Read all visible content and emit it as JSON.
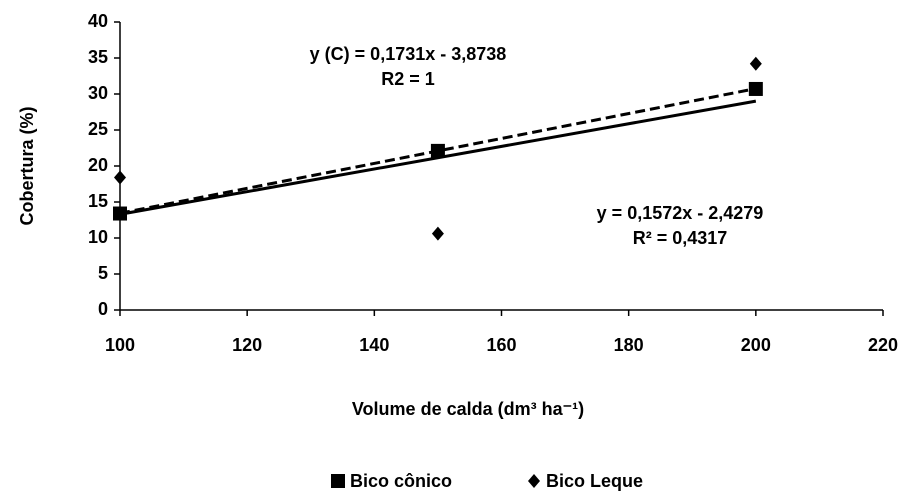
{
  "chart_data": {
    "type": "scatter",
    "x_label": "Volume de calda (dm³ ha⁻¹)",
    "y_label": "Cobertura (%)",
    "x": [
      100,
      150,
      200
    ],
    "series": [
      {
        "name": "Bico cônico",
        "color": "#000000",
        "marker": "square",
        "values": [
          13.4,
          22.1,
          30.7
        ],
        "trendline": {
          "slope": 0.1731,
          "intercept": -3.8738,
          "dash": true
        }
      },
      {
        "name": "Bico Leque",
        "color": "#000000",
        "marker": "diamond",
        "values": [
          18.4,
          10.6,
          34.2
        ],
        "trendline": {
          "slope": 0.1572,
          "intercept": -2.4279,
          "dash": false
        }
      }
    ],
    "annotations": [
      "y (C) = 0,1731x - 3,8738",
      "R2 = 1",
      "y = 0,1572x - 2,4279",
      "R² = 0,4317"
    ],
    "xlim": [
      100,
      220
    ],
    "xticks": [
      100,
      120,
      140,
      160,
      180,
      200,
      220
    ],
    "ylim": [
      0,
      40
    ],
    "yticks": [
      0,
      5,
      10,
      15,
      20,
      25,
      30,
      35,
      40
    ],
    "grid": false,
    "legend": "bottom"
  }
}
